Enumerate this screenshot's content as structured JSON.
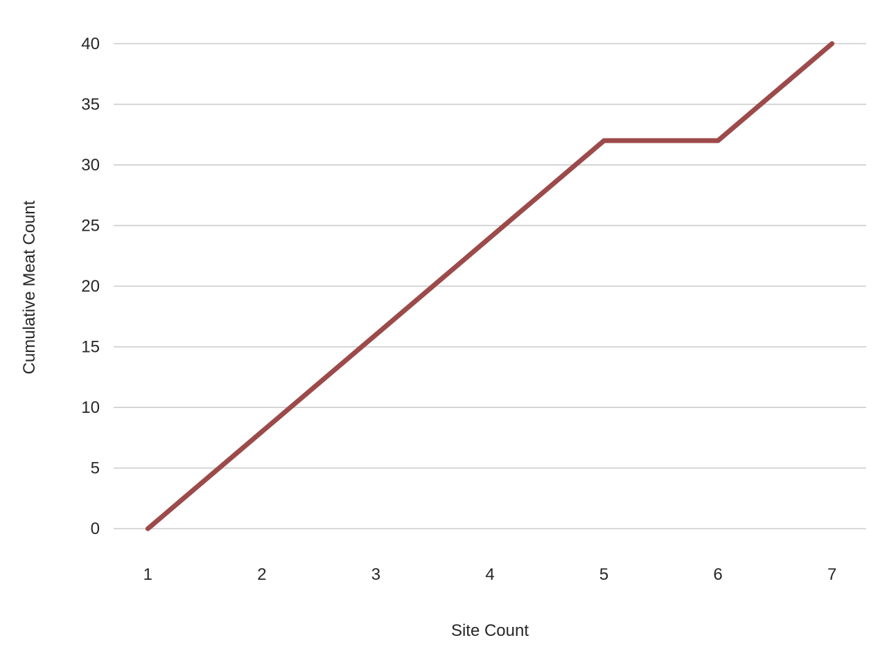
{
  "chart_data": {
    "type": "line",
    "title": "",
    "xlabel": "Site Count",
    "ylabel": "Cumulative Meat Count",
    "x": [
      1,
      2,
      3,
      4,
      5,
      6,
      7
    ],
    "series": [
      {
        "values": [
          0,
          8,
          16,
          24,
          32,
          32,
          40
        ],
        "color": "#9c4a4a"
      }
    ],
    "xlim": [
      0.7,
      7.3
    ],
    "ylim": [
      -2.1,
      42
    ],
    "y_ticks": [
      0,
      5,
      10,
      15,
      20,
      25,
      30,
      35,
      40
    ],
    "x_ticks": [
      1,
      2,
      3,
      4,
      5,
      6,
      7
    ],
    "grid": "horizontal",
    "legend": "none",
    "background": "#ffffff",
    "grid_color": "#cccccc",
    "text_color": "#262626"
  }
}
